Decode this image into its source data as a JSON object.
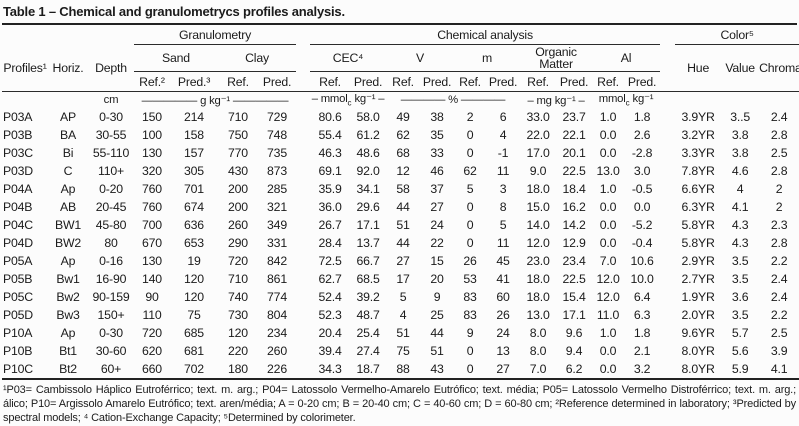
{
  "title": "Table 1 – Chemical and granulometrycs profiles analysis.",
  "table": {
    "groups": {
      "granulometry": "Granulometry",
      "chemical": "Chemical analysis",
      "color": "Color⁵"
    },
    "cols": {
      "profiles": "Profiles¹",
      "horiz": "Horiz.",
      "depth": "Depth",
      "sand": "Sand",
      "clay": "Clay",
      "cec": "CEC⁴",
      "v": "V",
      "m": "m",
      "om": "Organic Matter",
      "al": "Al",
      "hue": "Hue",
      "value": "Value",
      "chroma": "Chroma"
    },
    "subcols": {
      "ref2": "Ref.²",
      "pred3": "Pred.³",
      "ref": "Ref.",
      "pred": "Pred."
    },
    "units": {
      "cm": "cm",
      "g": "————— g kg⁻¹ —————",
      "cec_pre": "– mmol",
      "sub_c": "c",
      "cec_post": " kg⁻¹ –",
      "pct": "———— % ————",
      "mg": "– mg kg⁻¹ –",
      "al_pre": "mmol",
      "al_post": " kg⁻¹"
    },
    "rows": [
      [
        "P03A",
        "AP",
        "0-30",
        "150",
        "214",
        "710",
        "729",
        "80.6",
        "58.0",
        "49",
        "38",
        "2",
        "6",
        "33.0",
        "23.7",
        "1.0",
        "1.8",
        "3.9YR",
        "3..5",
        "2.4"
      ],
      [
        "P03B",
        "BA",
        "30-55",
        "100",
        "158",
        "750",
        "748",
        "55.4",
        "61.2",
        "62",
        "35",
        "0",
        "4",
        "22.0",
        "22.1",
        "0.0",
        "2.6",
        "3.2YR",
        "3.8",
        "2.8"
      ],
      [
        "P03C",
        "Bi",
        "55-110",
        "130",
        "157",
        "770",
        "735",
        "46.3",
        "48.6",
        "68",
        "33",
        "0",
        "-1",
        "17.0",
        "20.1",
        "0.0",
        "-2.8",
        "3.3YR",
        "3.8",
        "2.5"
      ],
      [
        "P03D",
        "C",
        "110+",
        "320",
        "305",
        "430",
        "873",
        "69.1",
        "92.0",
        "12",
        "46",
        "62",
        "11",
        "9.0",
        "22.5",
        "13.0",
        "3.0",
        "7.8YR",
        "4.6",
        "2.8"
      ],
      [
        "P04A",
        "Ap",
        "0-20",
        "760",
        "701",
        "200",
        "285",
        "35.9",
        "34.1",
        "58",
        "37",
        "5",
        "3",
        "18.0",
        "18.4",
        "1.0",
        "-0.5",
        "6.6YR",
        "4",
        "2"
      ],
      [
        "P04B",
        "AB",
        "20-45",
        "760",
        "674",
        "200",
        "321",
        "36.0",
        "29.6",
        "44",
        "27",
        "0",
        "8",
        "15.0",
        "16.2",
        "0.0",
        "0.0",
        "6.3YR",
        "4.1",
        "2"
      ],
      [
        "P04C",
        "BW1",
        "45-80",
        "700",
        "636",
        "260",
        "349",
        "26.7",
        "17.1",
        "51",
        "24",
        "0",
        "5",
        "14.0",
        "14.2",
        "0.0",
        "-5.2",
        "5.8YR",
        "4.3",
        "2.3"
      ],
      [
        "P04D",
        "BW2",
        "80",
        "670",
        "653",
        "290",
        "331",
        "28.4",
        "13.7",
        "44",
        "22",
        "0",
        "11",
        "12.0",
        "12.9",
        "0.0",
        "-0.4",
        "5.8YR",
        "4.3",
        "2.8"
      ],
      [
        "P05A",
        "Ap",
        "0-16",
        "130",
        "19",
        "720",
        "842",
        "72.5",
        "66.7",
        "27",
        "15",
        "26",
        "45",
        "23.0",
        "23.4",
        "7.0",
        "10.6",
        "2.9YR",
        "3.5",
        "2.2"
      ],
      [
        "P05B",
        "Bw1",
        "16-90",
        "140",
        "120",
        "710",
        "861",
        "62.7",
        "68.5",
        "17",
        "20",
        "53",
        "41",
        "18.0",
        "22.5",
        "12.0",
        "10.0",
        "2.7YR",
        "3.5",
        "2.4"
      ],
      [
        "P05C",
        "Bw2",
        "90-159",
        "90",
        "120",
        "740",
        "774",
        "52.4",
        "39.2",
        "5",
        "9",
        "83",
        "60",
        "18.0",
        "15.4",
        "12.0",
        "6.4",
        "1.9YR",
        "3.6",
        "2.4"
      ],
      [
        "P05D",
        "Bw3",
        "150+",
        "110",
        "75",
        "730",
        "804",
        "52.3",
        "48.7",
        "4",
        "25",
        "83",
        "26",
        "13.0",
        "17.1",
        "11.0",
        "6.3",
        "2.0YR",
        "3.5",
        "2.2"
      ],
      [
        "P10A",
        "Ap",
        "0-30",
        "720",
        "685",
        "120",
        "234",
        "20.4",
        "25.4",
        "51",
        "44",
        "9",
        "24",
        "8.0",
        "9.6",
        "1.0",
        "1.8",
        "9.6YR",
        "5.7",
        "2.5"
      ],
      [
        "P10B",
        "Bt1",
        "30-60",
        "620",
        "681",
        "220",
        "260",
        "39.4",
        "27.4",
        "75",
        "51",
        "0",
        "13",
        "8.0",
        "9.4",
        "0.0",
        "2.1",
        "8.0YR",
        "5.6",
        "3.9"
      ],
      [
        "P10C",
        "Bt2",
        "60+",
        "660",
        "702",
        "180",
        "226",
        "34.3",
        "18.7",
        "88",
        "43",
        "0",
        "27",
        "7.0",
        "6.2",
        "0.0",
        "3.2",
        "8.0YR",
        "5.9",
        "4.1"
      ]
    ]
  },
  "footnotes": "¹P03= Cambissolo Háplico Eutroférrico; text. m. arg.; P04= Latossolo Vermelho-Amarelo Eutrófico; text. média; P05= Latossolo Vermelho Distroférrico; text. m. arg.; álico; P10= Argissolo Amarelo Eutrófico; text. aren/média; A = 0-20 cm; B = 20-40 cm; C = 40-60 cm; D = 60-80 cm; ²Reference determined in laboratory; ³Predicted by spectral models; ⁴ Cation-Exchange Capacity; ⁵Determined by colorimeter."
}
